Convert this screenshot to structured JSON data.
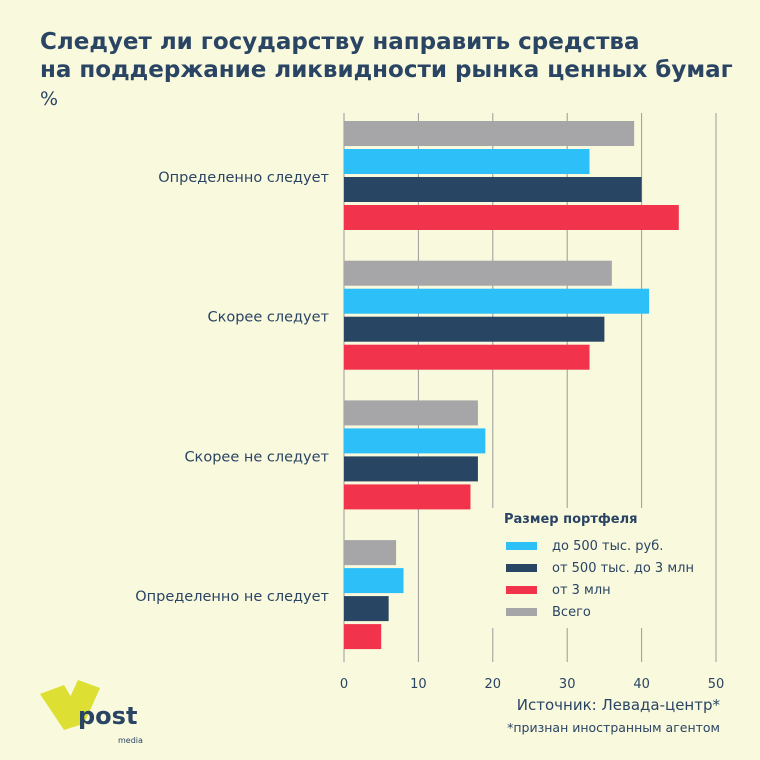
{
  "header": {
    "title_line1": "Следует ли государству направить средства",
    "title_line2": "на поддержание ликвидности рынка ценных бумаг",
    "unit": "%"
  },
  "chart_data": {
    "type": "bar",
    "orientation": "horizontal",
    "title": "Следует ли государству направить средства на поддержание ликвидности рынка ценных бумаг",
    "ylabel": "%",
    "categories": [
      "Определенно следует",
      "Скорее следует",
      "Скорее не следует",
      "Определенно не следует"
    ],
    "series": [
      {
        "name": "Всего",
        "color": "#a6a6a8",
        "values": [
          39,
          36,
          18,
          7
        ]
      },
      {
        "name": "до 500 тыс. руб.",
        "color": "#2dbff8",
        "values": [
          33,
          41,
          19,
          8
        ]
      },
      {
        "name": "от 500 тыс. до 3 млн",
        "color": "#284664",
        "values": [
          40,
          35,
          18,
          6
        ]
      },
      {
        "name": "от 3 млн",
        "color": "#f2334c",
        "values": [
          45,
          33,
          17,
          5
        ]
      }
    ],
    "xlim": [
      0,
      50
    ],
    "ticks": [
      0,
      10,
      20,
      30,
      40,
      50
    ],
    "grid": true,
    "legend_title": "Размер портфеля",
    "legend_order": [
      1,
      2,
      3,
      0
    ],
    "legend_position": "bottom-right"
  },
  "footer": {
    "source": "Источник: Левада-центр*",
    "note": "*признан иностранным агентом",
    "logo_text": "post",
    "logo_sub": "media"
  }
}
